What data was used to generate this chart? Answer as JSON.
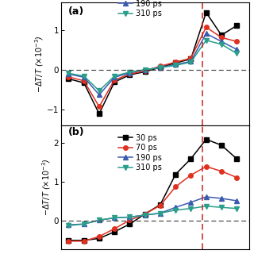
{
  "panel_a": {
    "label": "(a)",
    "x": [
      1,
      2,
      3,
      4,
      5,
      6,
      7,
      8,
      9,
      10,
      11,
      12
    ],
    "series_order": [
      "30 ps",
      "70 ps",
      "190 ps",
      "310 ps"
    ],
    "series": {
      "30 ps": [
        -0.22,
        -0.32,
        -1.1,
        -0.3,
        -0.12,
        -0.04,
        0.07,
        0.18,
        0.28,
        1.45,
        0.88,
        1.12
      ],
      "70 ps": [
        -0.17,
        -0.27,
        -0.92,
        -0.25,
        -0.1,
        -0.02,
        0.1,
        0.2,
        0.3,
        1.08,
        0.82,
        0.72
      ],
      "190 ps": [
        -0.1,
        -0.18,
        -0.62,
        -0.18,
        -0.07,
        0.01,
        0.07,
        0.14,
        0.22,
        0.92,
        0.72,
        0.52
      ],
      "310 ps": [
        -0.08,
        -0.15,
        -0.52,
        -0.15,
        -0.05,
        0.01,
        0.06,
        0.12,
        0.2,
        0.75,
        0.65,
        0.42
      ]
    },
    "colors": {
      "30 ps": "#000000",
      "70 ps": "#e03020",
      "190 ps": "#3a5bb0",
      "310 ps": "#2a9e8a"
    },
    "markers": {
      "30 ps": "s",
      "70 ps": "o",
      "190 ps": "^",
      "310 ps": "v"
    },
    "ylim": [
      -1.4,
      1.7
    ],
    "yticks": [
      -1,
      0,
      1
    ],
    "ylabel": "$-\\Delta T/T$ ($\\times 10^{-3}$)",
    "vline_x": 9.75,
    "legend_show": [
      "190 ps",
      "310 ps"
    ],
    "legend_top_cut": [
      "30 ps",
      "70 ps"
    ]
  },
  "panel_b": {
    "label": "(b)",
    "x": [
      1,
      2,
      3,
      4,
      5,
      6,
      7,
      8,
      9,
      10,
      11,
      12
    ],
    "series_order": [
      "30 ps",
      "70 ps",
      "190 ps",
      "310 ps"
    ],
    "series": {
      "30 ps": [
        -0.5,
        -0.5,
        -0.45,
        -0.28,
        -0.08,
        0.18,
        0.42,
        1.2,
        1.6,
        2.1,
        1.95,
        1.6
      ],
      "70 ps": [
        -0.52,
        -0.52,
        -0.4,
        -0.2,
        0.02,
        0.18,
        0.4,
        0.88,
        1.18,
        1.4,
        1.28,
        1.12
      ],
      "190 ps": [
        -0.1,
        -0.08,
        0.02,
        0.08,
        0.1,
        0.15,
        0.2,
        0.35,
        0.48,
        0.62,
        0.58,
        0.52
      ],
      "310 ps": [
        -0.12,
        -0.08,
        0.02,
        0.08,
        0.1,
        0.15,
        0.2,
        0.28,
        0.32,
        0.38,
        0.35,
        0.32
      ]
    },
    "colors": {
      "30 ps": "#000000",
      "70 ps": "#e03020",
      "190 ps": "#3a5bb0",
      "310 ps": "#2a9e8a"
    },
    "markers": {
      "30 ps": "s",
      "70 ps": "o",
      "190 ps": "^",
      "310 ps": "v"
    },
    "ylim": [
      -0.72,
      2.45
    ],
    "yticks": [
      0,
      1,
      2
    ],
    "ylabel": "$-\\Delta T/T$ ($\\times 10^{-3}$)",
    "vline_x": 9.75,
    "legend_show": [
      "30 ps",
      "70 ps",
      "190 ps",
      "310 ps"
    ]
  },
  "background_color": "#ffffff",
  "dashed_zero_color": "#444444",
  "vline_color": "#cc2020"
}
